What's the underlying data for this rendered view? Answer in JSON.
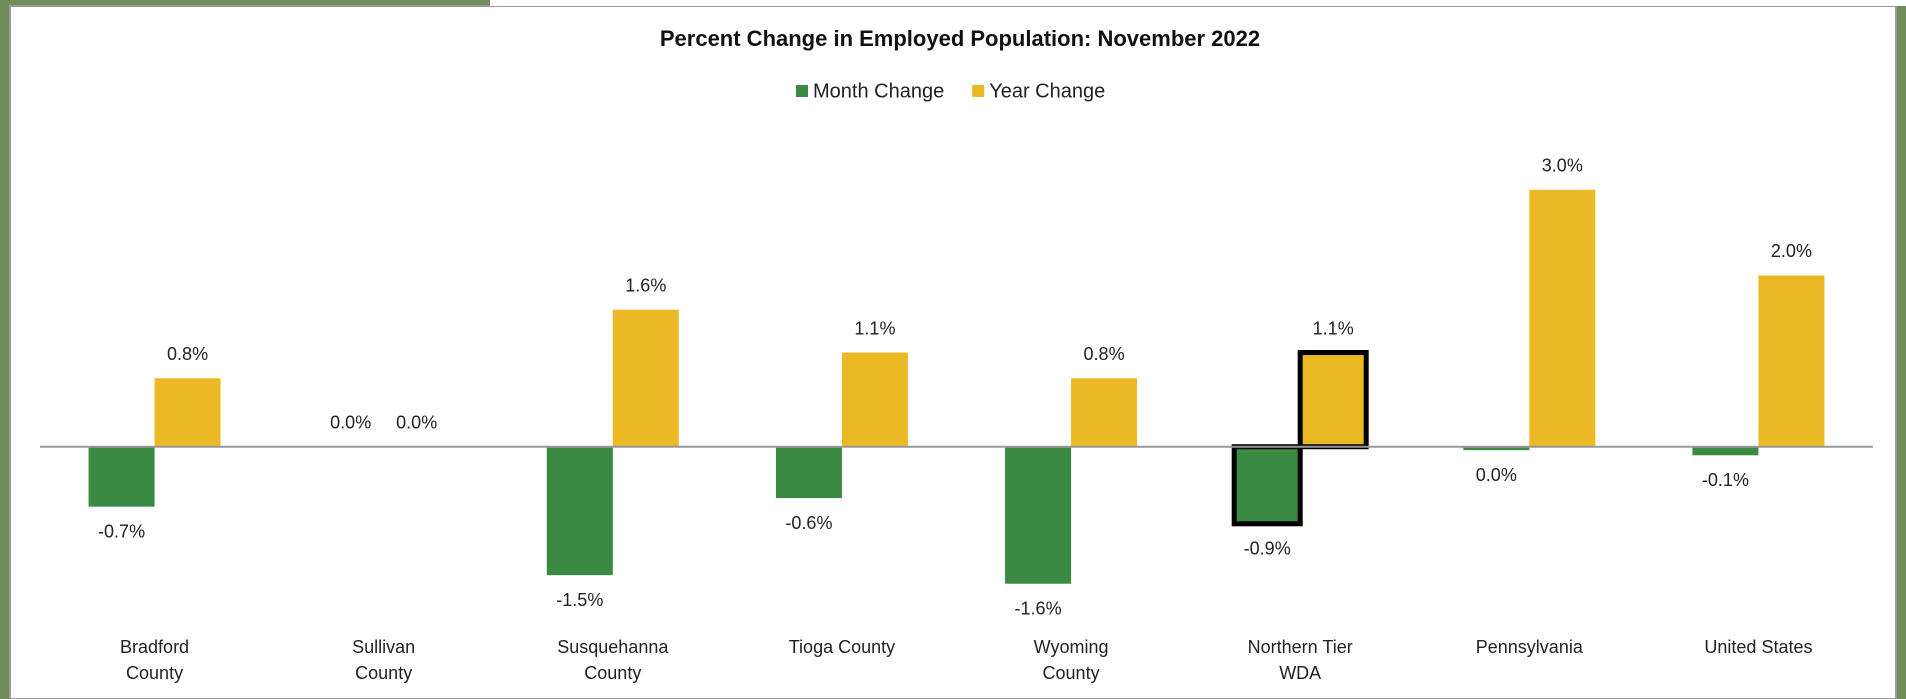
{
  "chart_data": {
    "type": "bar",
    "title": "Percent Change in Employed Population: November 2022",
    "categories": [
      "Bradford County",
      "Sullivan County",
      "Susquehanna County",
      "Tioga County",
      "Wyoming County",
      "Northern Tier WDA",
      "Pennsylvania",
      "United States"
    ],
    "series": [
      {
        "name": "Month Change",
        "color": "#3a8a44",
        "values": [
          -0.7,
          0.0,
          -1.5,
          -0.6,
          -1.6,
          -0.9,
          -0.04,
          -0.1
        ],
        "value_labels": [
          "-0.7%",
          "0.0%",
          "-1.5%",
          "-0.6%",
          "-1.6%",
          "-0.9%",
          "0.0%",
          "-0.1%"
        ]
      },
      {
        "name": "Year Change",
        "color": "#ebb923",
        "values": [
          0.8,
          0.0,
          1.6,
          1.1,
          0.8,
          1.1,
          3.0,
          2.0
        ],
        "value_labels": [
          "0.8%",
          "0.0%",
          "1.6%",
          "1.1%",
          "0.8%",
          "1.1%",
          "3.0%",
          "2.0%"
        ]
      }
    ],
    "ylim": [
      -2,
      3.5
    ],
    "highlight_index": 5,
    "legend": "top"
  }
}
